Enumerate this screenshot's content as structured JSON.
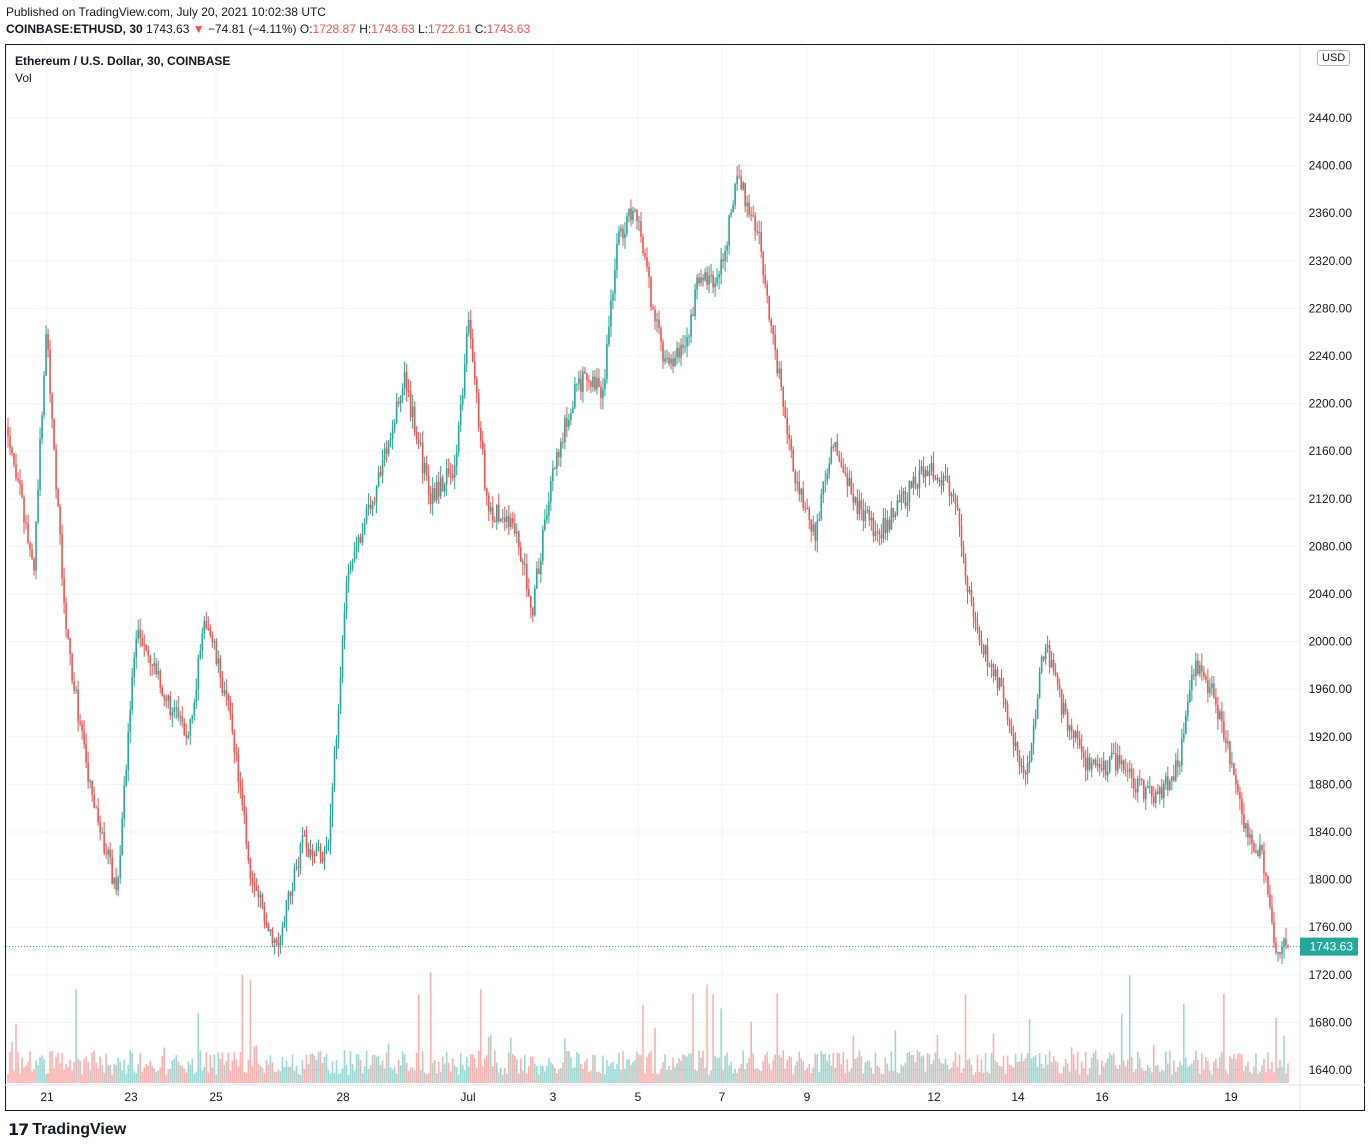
{
  "header": {
    "published": "Published on TradingView.com, July 20, 2021 10:02:38 UTC",
    "symbol": "COINBASE:ETHUSD, 30",
    "last": "1743.63",
    "arrow": "▼",
    "change": "−74.81 (−4.11%)",
    "o_label": "O:",
    "o": "1728.87",
    "h_label": "H:",
    "h": "1743.63",
    "l_label": "L:",
    "l": "1722.61",
    "c_label": "C:",
    "c": "1743.63"
  },
  "legend": {
    "title": "Ethereum / U.S. Dollar, 30, COINBASE",
    "vol": "Vol"
  },
  "currency": "USD",
  "footer": {
    "brand": "TradingView"
  },
  "colors": {
    "up": "#26a69a",
    "down": "#ef5350",
    "last_price_bg": "#26a69a",
    "grid": "#f0f3fa"
  },
  "chart_data": {
    "type": "candlestick",
    "title": "Ethereum / U.S. Dollar, 30, COINBASE",
    "ylim": [
      1620,
      2480
    ],
    "y_ticks": [
      1640,
      1680,
      1720,
      1760,
      1800,
      1840,
      1880,
      1920,
      1960,
      2000,
      2040,
      2080,
      2120,
      2160,
      2200,
      2240,
      2280,
      2320,
      2360,
      2400,
      2440
    ],
    "x_labels": [
      "21",
      "23",
      "25",
      "28",
      "Jul",
      "3",
      "5",
      "7",
      "9",
      "12",
      "14",
      "16",
      "19"
    ],
    "last_price": 1743.63,
    "last_price_label": "1743.63",
    "price_path": [
      {
        "t": 0.0,
        "p": 2180
      },
      {
        "t": 0.02,
        "p": 2060
      },
      {
        "t": 0.03,
        "p": 2265
      },
      {
        "t": 0.045,
        "p": 2010
      },
      {
        "t": 0.065,
        "p": 1870
      },
      {
        "t": 0.085,
        "p": 1790
      },
      {
        "t": 0.1,
        "p": 2010
      },
      {
        "t": 0.12,
        "p": 1960
      },
      {
        "t": 0.14,
        "p": 1920
      },
      {
        "t": 0.155,
        "p": 2020
      },
      {
        "t": 0.175,
        "p": 1930
      },
      {
        "t": 0.19,
        "p": 1800
      },
      {
        "t": 0.21,
        "p": 1745
      },
      {
        "t": 0.23,
        "p": 1830
      },
      {
        "t": 0.25,
        "p": 1820
      },
      {
        "t": 0.265,
        "p": 2060
      },
      {
        "t": 0.285,
        "p": 2120
      },
      {
        "t": 0.31,
        "p": 2220
      },
      {
        "t": 0.33,
        "p": 2120
      },
      {
        "t": 0.35,
        "p": 2150
      },
      {
        "t": 0.36,
        "p": 2270
      },
      {
        "t": 0.375,
        "p": 2110
      },
      {
        "t": 0.395,
        "p": 2100
      },
      {
        "t": 0.41,
        "p": 2030
      },
      {
        "t": 0.425,
        "p": 2140
      },
      {
        "t": 0.445,
        "p": 2220
      },
      {
        "t": 0.465,
        "p": 2210
      },
      {
        "t": 0.475,
        "p": 2330
      },
      {
        "t": 0.49,
        "p": 2370
      },
      {
        "t": 0.505,
        "p": 2270
      },
      {
        "t": 0.515,
        "p": 2230
      },
      {
        "t": 0.53,
        "p": 2250
      },
      {
        "t": 0.54,
        "p": 2310
      },
      {
        "t": 0.555,
        "p": 2300
      },
      {
        "t": 0.57,
        "p": 2390
      },
      {
        "t": 0.585,
        "p": 2350
      },
      {
        "t": 0.6,
        "p": 2240
      },
      {
        "t": 0.615,
        "p": 2140
      },
      {
        "t": 0.63,
        "p": 2090
      },
      {
        "t": 0.645,
        "p": 2170
      },
      {
        "t": 0.66,
        "p": 2120
      },
      {
        "t": 0.68,
        "p": 2090
      },
      {
        "t": 0.7,
        "p": 2120
      },
      {
        "t": 0.72,
        "p": 2150
      },
      {
        "t": 0.74,
        "p": 2120
      },
      {
        "t": 0.755,
        "p": 2010
      },
      {
        "t": 0.775,
        "p": 1960
      },
      {
        "t": 0.795,
        "p": 1880
      },
      {
        "t": 0.81,
        "p": 2000
      },
      {
        "t": 0.825,
        "p": 1940
      },
      {
        "t": 0.845,
        "p": 1890
      },
      {
        "t": 0.865,
        "p": 1900
      },
      {
        "t": 0.88,
        "p": 1880
      },
      {
        "t": 0.9,
        "p": 1870
      },
      {
        "t": 0.915,
        "p": 1900
      },
      {
        "t": 0.925,
        "p": 1980
      },
      {
        "t": 0.94,
        "p": 1960
      },
      {
        "t": 0.955,
        "p": 1900
      },
      {
        "t": 0.97,
        "p": 1830
      },
      {
        "t": 0.98,
        "p": 1820
      },
      {
        "t": 0.99,
        "p": 1740
      },
      {
        "t": 1.0,
        "p": 1743.63
      }
    ]
  }
}
